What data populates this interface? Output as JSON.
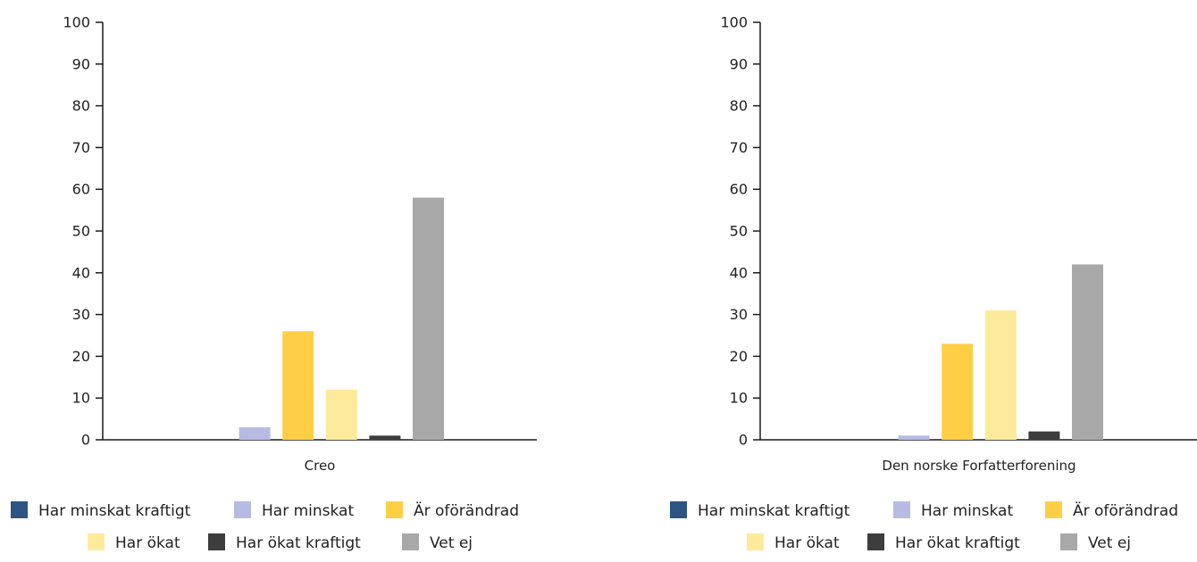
{
  "colors": {
    "axis": "#1a1a1a",
    "text": "#222222"
  },
  "chart_data": [
    {
      "type": "bar",
      "categories": [
        "Creo"
      ],
      "ylim": [
        0,
        100
      ],
      "yticks": [
        0,
        10,
        20,
        30,
        40,
        50,
        60,
        70,
        80,
        90,
        100
      ],
      "grid": false,
      "legend_position": "bottom",
      "series": [
        {
          "name": "Har minskat kraftigt",
          "color": "#2e5483",
          "values": [
            0
          ]
        },
        {
          "name": "Har minskat",
          "color": "#b7bbe3",
          "values": [
            3
          ]
        },
        {
          "name": "Är oförändrad",
          "color": "#fecf45",
          "values": [
            26
          ]
        },
        {
          "name": "Har ökat",
          "color": "#feea9b",
          "values": [
            12
          ]
        },
        {
          "name": "Har ökat kraftigt",
          "color": "#3d3d3d",
          "values": [
            1
          ]
        },
        {
          "name": "Vet ej",
          "color": "#a8a8a8",
          "values": [
            58
          ]
        }
      ]
    },
    {
      "type": "bar",
      "categories": [
        "Den norske Forfatterforening"
      ],
      "ylim": [
        0,
        100
      ],
      "yticks": [
        0,
        10,
        20,
        30,
        40,
        50,
        60,
        70,
        80,
        90,
        100
      ],
      "grid": false,
      "legend_position": "bottom",
      "series": [
        {
          "name": "Har minskat kraftigt",
          "color": "#2e5483",
          "values": [
            0
          ]
        },
        {
          "name": "Har minskat",
          "color": "#b7bbe3",
          "values": [
            1
          ]
        },
        {
          "name": "Är oförändrad",
          "color": "#fecf45",
          "values": [
            23
          ]
        },
        {
          "name": "Har ökat",
          "color": "#feea9b",
          "values": [
            31
          ]
        },
        {
          "name": "Har ökat kraftigt",
          "color": "#3d3d3d",
          "values": [
            2
          ]
        },
        {
          "name": "Vet ej",
          "color": "#a8a8a8",
          "values": [
            42
          ]
        }
      ]
    }
  ]
}
